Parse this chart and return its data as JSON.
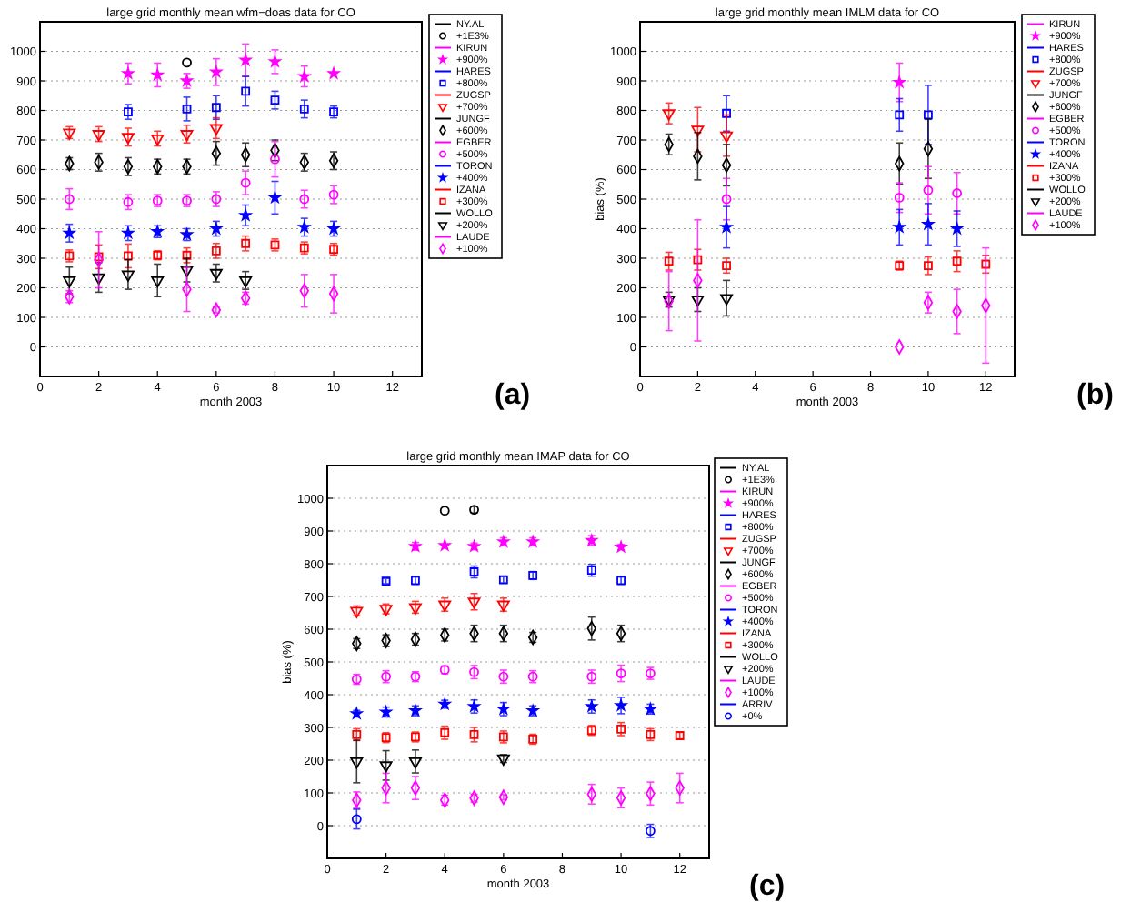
{
  "chart_data": [
    {
      "type": "scatter",
      "title": "large grid monthly mean wfm−doas data for CO",
      "xlabel": "month 2003",
      "xlim": [
        0,
        13
      ],
      "xticks": [
        0,
        2,
        4,
        6,
        8,
        10,
        12
      ],
      "ylim": [
        -100,
        1100
      ],
      "yticks": [
        0,
        100,
        200,
        300,
        400,
        500,
        600,
        700,
        800,
        900,
        1000
      ],
      "grid": "y",
      "legend": "right",
      "annotations": [
        "(a)"
      ],
      "series": [
        {
          "name": "NY.AL\n+1E3%",
          "color": "#000000",
          "marker": "circle",
          "x": [
            5
          ],
          "values": [
            962
          ],
          "errors": [
            null
          ]
        },
        {
          "name": "KIRUN\n+900%",
          "color": "#ff00ff",
          "marker": "star",
          "x": [
            3,
            4,
            5,
            6,
            7,
            8,
            9,
            10
          ],
          "values": [
            925,
            920,
            900,
            930,
            970,
            965,
            915,
            925
          ],
          "errors": [
            35,
            40,
            25,
            45,
            55,
            40,
            35,
            null
          ]
        },
        {
          "name": "HARES\n+800%",
          "color": "#0000ff",
          "marker": "square",
          "x": [
            3,
            5,
            6,
            7,
            8,
            9,
            10
          ],
          "values": [
            795,
            805,
            810,
            865,
            835,
            805,
            795
          ],
          "errors": [
            25,
            40,
            40,
            50,
            30,
            30,
            20
          ]
        },
        {
          "name": "ZUGSP\n+700%",
          "color": "#ff0000",
          "marker": "triangle",
          "x": [
            1,
            2,
            3,
            4,
            5,
            6
          ],
          "values": [
            725,
            720,
            710,
            705,
            720,
            740
          ],
          "errors": [
            20,
            25,
            30,
            25,
            30,
            35
          ]
        },
        {
          "name": "JUNGF\n+600%",
          "color": "#000000",
          "marker": "diamond",
          "x": [
            1,
            2,
            3,
            4,
            5,
            6,
            7,
            8,
            9,
            10
          ],
          "values": [
            620,
            625,
            610,
            610,
            610,
            655,
            650,
            665,
            625,
            630
          ],
          "errors": [
            20,
            30,
            30,
            25,
            25,
            40,
            40,
            35,
            30,
            30
          ]
        },
        {
          "name": "EGBER\n+500%",
          "color": "#ff00ff",
          "marker": "circle",
          "x": [
            1,
            3,
            4,
            5,
            6,
            7,
            8,
            9,
            10
          ],
          "values": [
            500,
            490,
            495,
            495,
            500,
            555,
            635,
            500,
            515
          ],
          "errors": [
            35,
            25,
            20,
            20,
            25,
            40,
            60,
            30,
            30
          ]
        },
        {
          "name": "TORON\n+400%",
          "color": "#0000ff",
          "marker": "star",
          "x": [
            1,
            3,
            4,
            5,
            6,
            7,
            8,
            9,
            10
          ],
          "values": [
            385,
            385,
            390,
            380,
            400,
            445,
            505,
            405,
            400
          ],
          "errors": [
            30,
            25,
            20,
            20,
            25,
            35,
            55,
            30,
            25
          ]
        },
        {
          "name": "IZANA\n+300%",
          "color": "#ff0000",
          "marker": "square",
          "x": [
            1,
            2,
            3,
            4,
            5,
            6,
            7,
            8,
            9,
            10
          ],
          "values": [
            308,
            305,
            308,
            310,
            310,
            325,
            350,
            345,
            335,
            330
          ],
          "errors": [
            20,
            40,
            40,
            15,
            25,
            25,
            25,
            20,
            20,
            20
          ]
        },
        {
          "name": "WOLLO\n+200%",
          "color": "#000000",
          "marker": "triangle",
          "x": [
            1,
            2,
            3,
            4,
            5,
            6,
            7
          ],
          "values": [
            225,
            235,
            245,
            225,
            260,
            250,
            225
          ],
          "errors": [
            45,
            50,
            50,
            55,
            40,
            30,
            30
          ]
        },
        {
          "name": "LAUDE\n+100%",
          "color": "#ff00ff",
          "marker": "diamond",
          "x": [
            1,
            2,
            5,
            6,
            7,
            9,
            10
          ],
          "values": [
            170,
            295,
            195,
            125,
            165,
            190,
            180
          ],
          "errors": [
            20,
            95,
            75,
            10,
            20,
            55,
            65
          ]
        }
      ]
    },
    {
      "type": "scatter",
      "title": "large grid monthly mean IMLM data for CO",
      "xlabel": "month 2003",
      "ylabel": "bias (%)",
      "xlim": [
        0,
        13
      ],
      "xticks": [
        0,
        2,
        4,
        6,
        8,
        10,
        12
      ],
      "ylim": [
        -100,
        1100
      ],
      "yticks": [
        0,
        100,
        200,
        300,
        400,
        500,
        600,
        700,
        800,
        900,
        1000
      ],
      "grid": "y",
      "legend": "right",
      "annotations": [
        "(b)"
      ],
      "series": [
        {
          "name": "KIRUN\n+900%",
          "color": "#ff00ff",
          "marker": "star",
          "x": [
            9
          ],
          "values": [
            895
          ],
          "errors": [
            65
          ]
        },
        {
          "name": "HARES\n+800%",
          "color": "#0000ff",
          "marker": "square",
          "x": [
            3,
            9,
            10
          ],
          "values": [
            790,
            785,
            785
          ],
          "errors": [
            60,
            55,
            100
          ]
        },
        {
          "name": "ZUGSP\n+700%",
          "color": "#ff0000",
          "marker": "triangle",
          "x": [
            1,
            2,
            3
          ],
          "values": [
            790,
            735,
            715
          ],
          "errors": [
            35,
            75,
            70
          ]
        },
        {
          "name": "JUNGF\n+600%",
          "color": "#000000",
          "marker": "diamond",
          "x": [
            1,
            2,
            3,
            9,
            10
          ],
          "values": [
            685,
            645,
            615,
            620,
            670
          ],
          "errors": [
            35,
            80,
            70,
            70,
            100
          ]
        },
        {
          "name": "EGBER\n+500%",
          "color": "#ff00ff",
          "marker": "circle",
          "x": [
            3,
            9,
            10,
            11
          ],
          "values": [
            500,
            505,
            530,
            520
          ],
          "errors": [
            70,
            50,
            80,
            70
          ]
        },
        {
          "name": "TORON\n+400%",
          "color": "#0000ff",
          "marker": "star",
          "x": [
            3,
            9,
            10,
            11
          ],
          "values": [
            405,
            405,
            415,
            400
          ],
          "errors": [
            70,
            60,
            70,
            60
          ]
        },
        {
          "name": "IZANA\n+300%",
          "color": "#ff0000",
          "marker": "square",
          "x": [
            1,
            2,
            3,
            9,
            10,
            11,
            12
          ],
          "values": [
            290,
            295,
            275,
            275,
            275,
            290,
            280
          ],
          "errors": [
            30,
            35,
            25,
            15,
            30,
            35,
            30
          ]
        },
        {
          "name": "WOLLO\n+200%",
          "color": "#000000",
          "marker": "triangle",
          "x": [
            1,
            2,
            3
          ],
          "values": [
            160,
            160,
            165
          ],
          "errors": [
            25,
            40,
            60
          ]
        },
        {
          "name": "LAUDE\n+100%",
          "color": "#ff00ff",
          "marker": "diamond",
          "x": [
            1,
            2,
            9,
            10,
            11,
            12
          ],
          "values": [
            155,
            225,
            0,
            150,
            120,
            140
          ],
          "errors": [
            100,
            205,
            null,
            35,
            75,
            195
          ]
        }
      ]
    },
    {
      "type": "scatter",
      "title": "large grid monthly mean IMAP data for CO",
      "xlabel": "month 2003",
      "ylabel": "bias (%)",
      "xlim": [
        0,
        13
      ],
      "xticks": [
        0,
        2,
        4,
        6,
        8,
        10,
        12
      ],
      "ylim": [
        -100,
        1100
      ],
      "yticks": [
        0,
        100,
        200,
        300,
        400,
        500,
        600,
        700,
        800,
        900,
        1000
      ],
      "grid": "y",
      "legend": "right",
      "annotations": [
        "(c)"
      ],
      "series": [
        {
          "name": "NY.AL\n+1E3%",
          "color": "#000000",
          "marker": "circle",
          "x": [
            4,
            5
          ],
          "values": [
            962,
            965
          ],
          "errors": [
            null,
            10
          ]
        },
        {
          "name": "KIRUN\n+900%",
          "color": "#ff00ff",
          "marker": "star",
          "x": [
            3,
            4,
            5,
            6,
            7,
            9,
            10
          ],
          "values": [
            853,
            856,
            853,
            867,
            867,
            871,
            851
          ],
          "errors": [
            12,
            null,
            10,
            12,
            12,
            15,
            8
          ]
        },
        {
          "name": "HARES\n+800%",
          "color": "#0000ff",
          "marker": "square",
          "x": [
            2,
            3,
            5,
            6,
            7,
            9,
            10
          ],
          "values": [
            747,
            749,
            775,
            751,
            764,
            780,
            749
          ],
          "errors": [
            8,
            12,
            18,
            10,
            12,
            18,
            12
          ]
        },
        {
          "name": "ZUGSP\n+700%",
          "color": "#ff0000",
          "marker": "triangle",
          "x": [
            1,
            2,
            3,
            4,
            5,
            6
          ],
          "values": [
            656,
            662,
            667,
            675,
            684,
            675
          ],
          "errors": [
            15,
            15,
            18,
            20,
            25,
            20
          ]
        },
        {
          "name": "JUNGF\n+600%",
          "color": "#000000",
          "marker": "diamond",
          "x": [
            1,
            2,
            3,
            4,
            5,
            6,
            7,
            9,
            10
          ],
          "values": [
            556,
            565,
            569,
            582,
            587,
            587,
            575,
            602,
            587
          ],
          "errors": [
            15,
            18,
            18,
            18,
            25,
            25,
            15,
            35,
            25
          ]
        },
        {
          "name": "EGBER\n+500%",
          "color": "#ff00ff",
          "marker": "circle",
          "x": [
            1,
            2,
            3,
            4,
            5,
            6,
            7,
            9,
            10,
            11
          ],
          "values": [
            447,
            455,
            455,
            476,
            469,
            455,
            455,
            455,
            465,
            465
          ],
          "errors": [
            15,
            18,
            15,
            12,
            20,
            20,
            18,
            20,
            25,
            18
          ]
        },
        {
          "name": "TORON\n+400%",
          "color": "#0000ff",
          "marker": "star",
          "x": [
            1,
            2,
            3,
            4,
            5,
            6,
            7,
            9,
            10,
            11
          ],
          "values": [
            342,
            347,
            351,
            371,
            364,
            356,
            351,
            364,
            367,
            356
          ],
          "errors": [
            10,
            15,
            15,
            12,
            20,
            20,
            15,
            20,
            25,
            15
          ]
        },
        {
          "name": "IZANA\n+300%",
          "color": "#ff0000",
          "marker": "square",
          "x": [
            1,
            2,
            3,
            4,
            5,
            6,
            7,
            9,
            10,
            11,
            12
          ],
          "values": [
            278,
            269,
            271,
            284,
            278,
            271,
            264,
            291,
            295,
            278,
            275
          ],
          "errors": [
            18,
            15,
            15,
            20,
            22,
            18,
            15,
            15,
            20,
            18,
            10
          ]
        },
        {
          "name": "WOLLO\n+200%",
          "color": "#000000",
          "marker": "triangle",
          "x": [
            1,
            2,
            3,
            6
          ],
          "values": [
            196,
            184,
            196,
            205
          ],
          "errors": [
            65,
            45,
            35,
            12
          ]
        },
        {
          "name": "LAUDE\n+100%",
          "color": "#ff00ff",
          "marker": "diamond",
          "x": [
            1,
            2,
            3,
            4,
            5,
            6,
            9,
            10,
            11,
            12
          ],
          "values": [
            78,
            115,
            115,
            78,
            84,
            87,
            96,
            85,
            98,
            115
          ],
          "errors": [
            25,
            45,
            35,
            15,
            12,
            8,
            30,
            30,
            35,
            45
          ]
        },
        {
          "name": "ARRIV\n+0%",
          "color": "#0000ff",
          "marker": "circle",
          "x": [
            1,
            11
          ],
          "values": [
            20,
            -16
          ],
          "errors": [
            30,
            20
          ]
        }
      ]
    }
  ]
}
